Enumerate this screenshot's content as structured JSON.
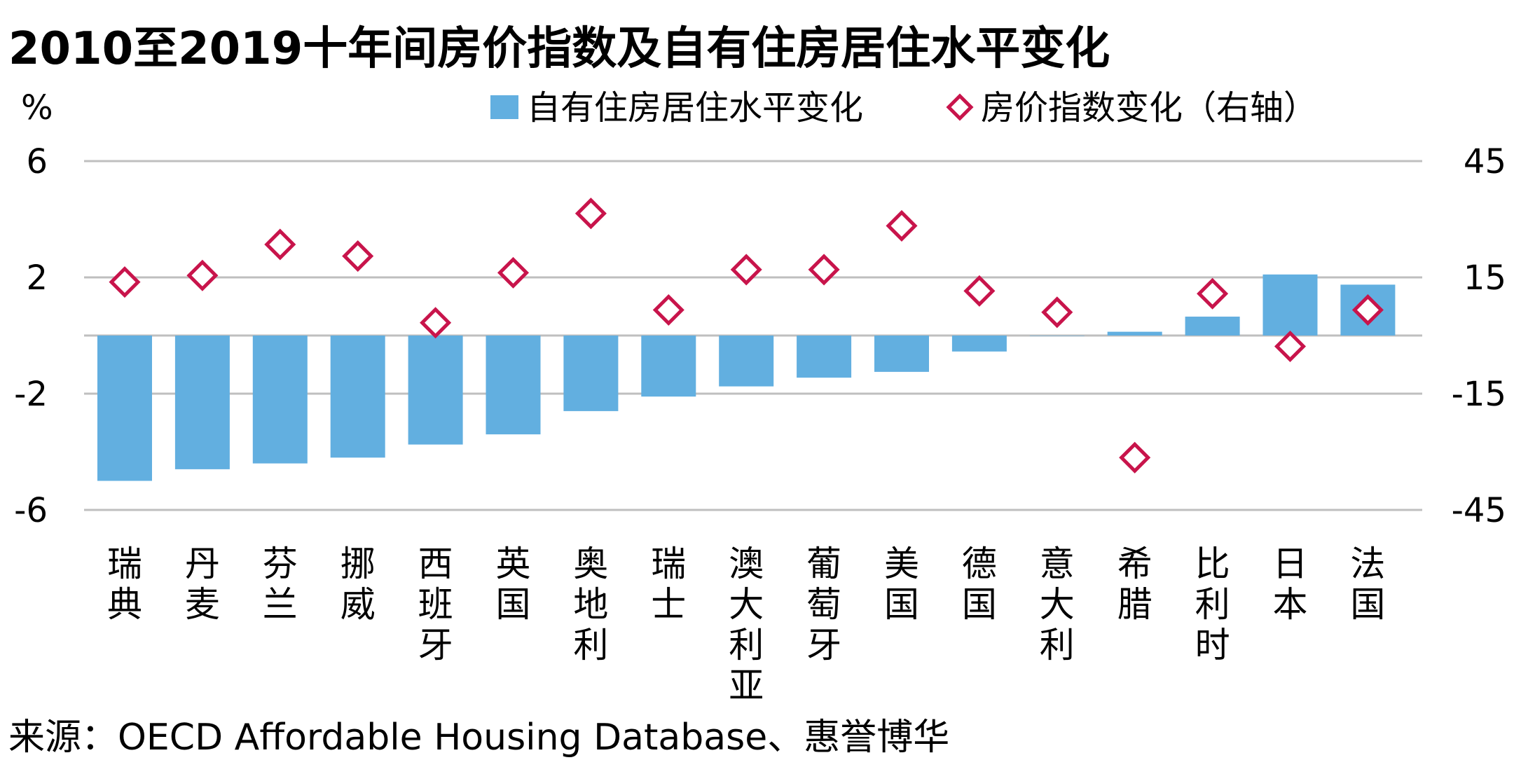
{
  "chart_data": {
    "type": "bar",
    "title": "2010至2019十年间房价指数及自有住房居住水平变化",
    "source": "来源：OECD Affordable Housing Database、惠誉博华",
    "ylabel": "%",
    "ylim": [
      -6,
      6
    ],
    "y_ticks": [
      "6",
      "2",
      "-2",
      "-6"
    ],
    "y2lim": [
      -45,
      45
    ],
    "y2_ticks": [
      "45",
      "15",
      "-15",
      "-45"
    ],
    "legend_position": "top-right",
    "categories": [
      "瑞典",
      "丹麦",
      "芬兰",
      "挪威",
      "西班牙",
      "英国",
      "奥地利",
      "瑞士",
      "澳大利亚",
      "葡萄牙",
      "美国",
      "德国",
      "意大利",
      "希腊",
      "比利时",
      "日本",
      "法国"
    ],
    "series": [
      {
        "name": "自有住房居住水平变化",
        "kind": "bar",
        "axis": "left",
        "color": "#62afe0",
        "values": [
          -5.0,
          -4.6,
          -4.4,
          -4.2,
          -3.75,
          -3.4,
          -2.6,
          -2.1,
          -1.75,
          -1.45,
          -1.25,
          -0.55,
          0.0,
          0.13,
          0.65,
          2.1,
          1.75
        ]
      },
      {
        "name": "房价指数变化（右轴）",
        "kind": "scatter",
        "axis": "right",
        "color": "#c8144b",
        "values": [
          13.8,
          15.5,
          23.5,
          20.5,
          3.3,
          16.2,
          31.5,
          6.6,
          17.0,
          17.0,
          28.3,
          11.5,
          6.0,
          -31.5,
          10.8,
          -2.8,
          6.6
        ]
      }
    ]
  }
}
